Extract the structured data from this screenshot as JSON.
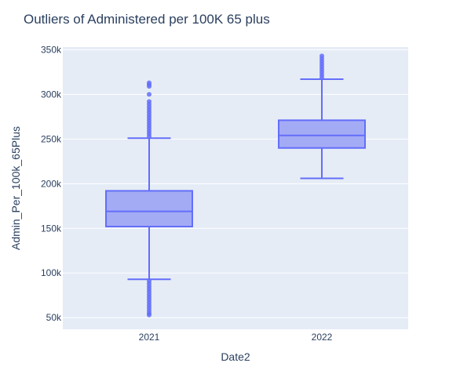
{
  "chart_data": {
    "type": "box",
    "title": "Outliers of Administered per 100K 65 plus",
    "xlabel": "Date2",
    "ylabel": "Admin_Per_100k_65Plus",
    "categories": [
      "2021",
      "2022"
    ],
    "ylim": [
      37000,
      353000
    ],
    "yticks": [
      50000,
      100000,
      150000,
      200000,
      250000,
      300000,
      350000
    ],
    "ytick_labels": [
      "50k",
      "100k",
      "150k",
      "200k",
      "250k",
      "300k",
      "350k"
    ],
    "grid": true,
    "colors": {
      "plot_bg": "#e5ecf6",
      "box_fill": "#a4abf5",
      "line": "#636efa",
      "text": "#2a3f5f",
      "grid": "#ffffff"
    },
    "boxes": [
      {
        "category": "2021",
        "min": 93000,
        "q1": 152000,
        "median": 169000,
        "q3": 192000,
        "max": 251000,
        "outliers_high": [
          253000,
          256000,
          259000,
          262000,
          265000,
          268000,
          271000,
          274000,
          277000,
          280000,
          283000,
          286000,
          289000,
          292000,
          300000,
          309000,
          311000,
          313000
        ],
        "outliers_low": [
          91000,
          88000,
          85000,
          82000,
          79000,
          76000,
          73000,
          70000,
          67000,
          64000,
          61000,
          58000,
          55000,
          53000
        ]
      },
      {
        "category": "2022",
        "min": 206000,
        "q1": 240000,
        "median": 254000,
        "q3": 271000,
        "max": 317000,
        "outliers_high": [
          319000,
          322000,
          325000,
          328000,
          331000,
          334000,
          337000,
          340000,
          343000
        ],
        "outliers_low": []
      }
    ]
  }
}
